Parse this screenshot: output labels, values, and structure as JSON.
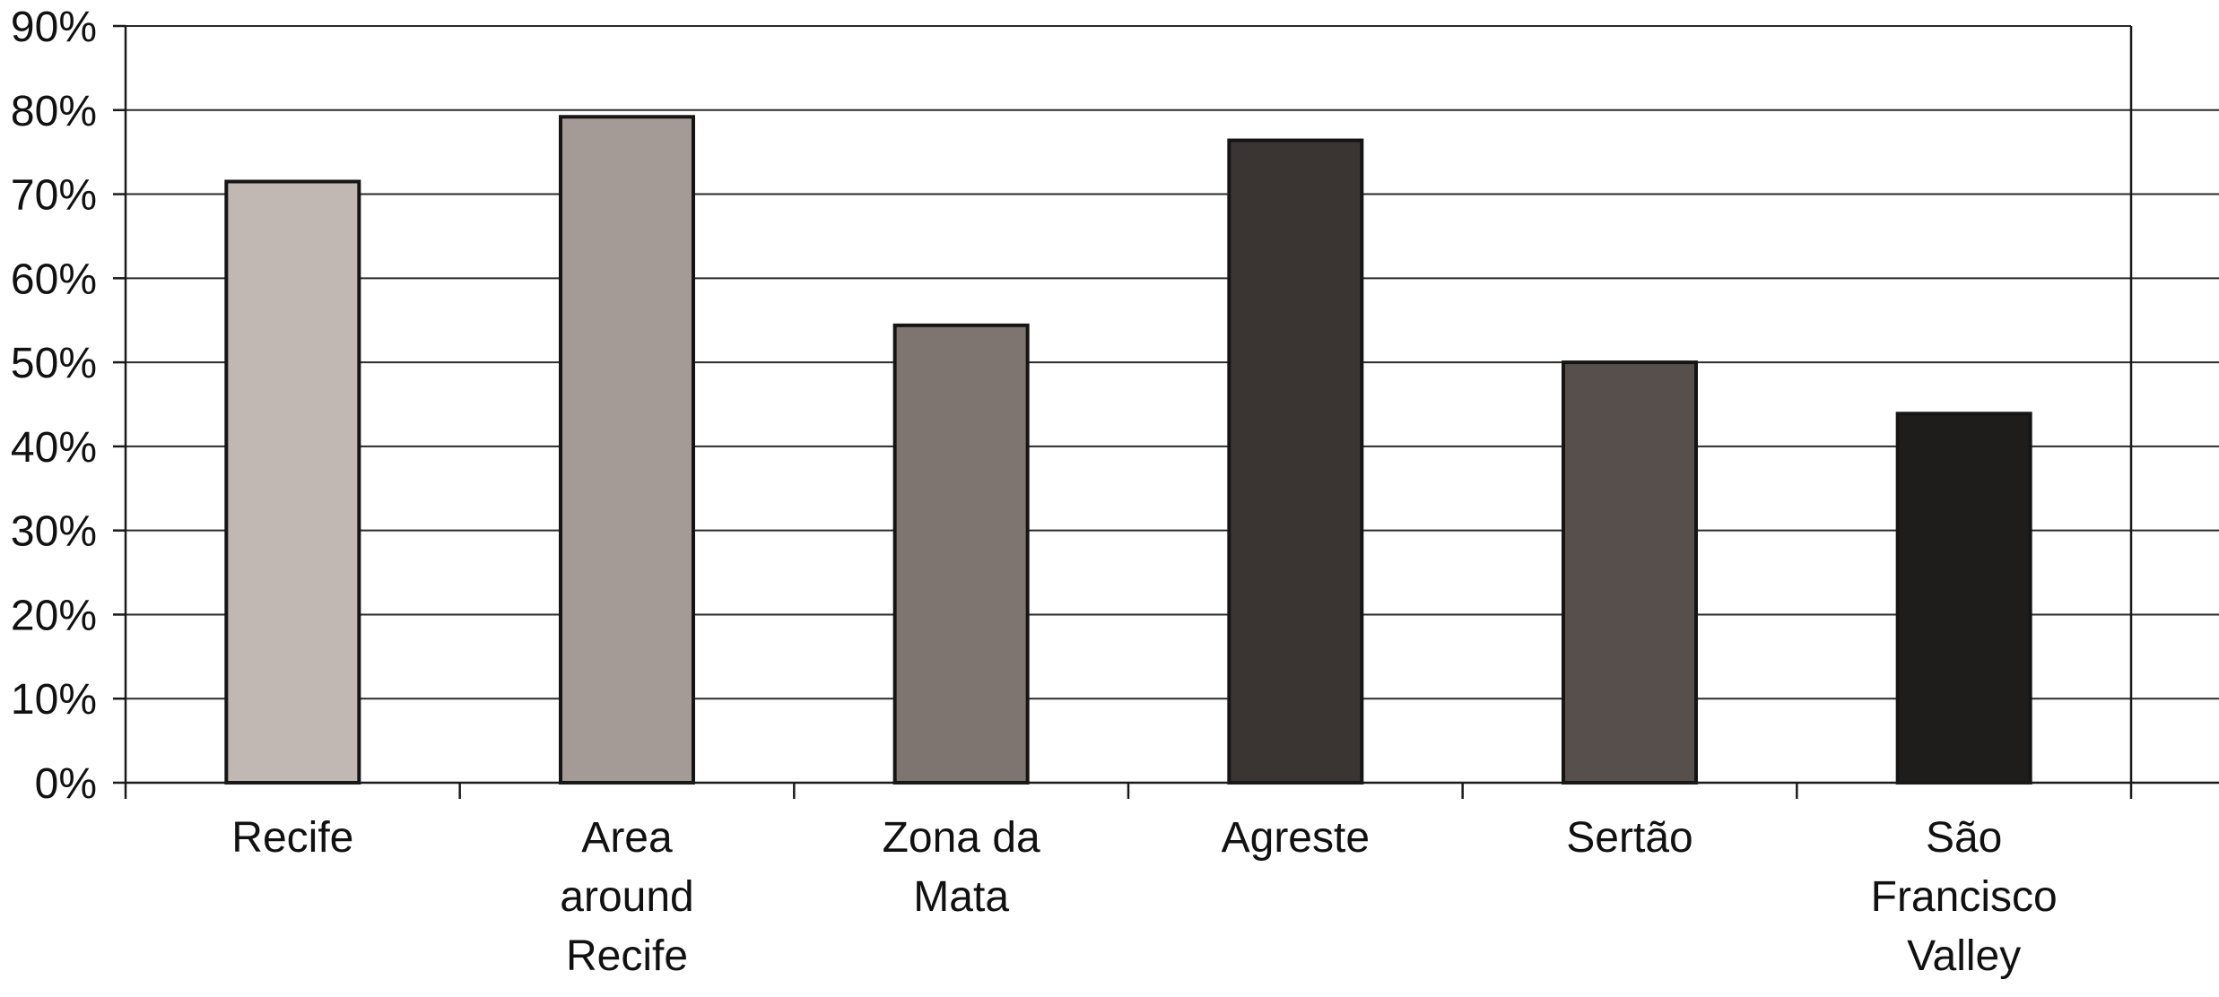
{
  "chart_data": {
    "type": "bar",
    "title": "",
    "xlabel": "",
    "ylabel": "",
    "categories": [
      [
        "Recife"
      ],
      [
        "Area",
        "around",
        "Recife"
      ],
      [
        "Zona da",
        "Mata"
      ],
      [
        "Agreste"
      ],
      [
        "Sertão"
      ],
      [
        "São",
        "Francisco",
        "Valley"
      ]
    ],
    "values": [
      71.5,
      79.2,
      54.4,
      76.4,
      50.0,
      43.9
    ],
    "bar_colors": [
      "#c2b8b3",
      "#a59b96",
      "#7e7470",
      "#3a3532",
      "#574f4b",
      "#1e1d1b"
    ],
    "ylim": [
      0,
      90
    ],
    "yticks": [
      0,
      10,
      20,
      30,
      40,
      50,
      60,
      70,
      80,
      90
    ],
    "ytick_labels": [
      "0%",
      "10%",
      "20%",
      "30%",
      "40%",
      "50%",
      "60%",
      "70%",
      "80%",
      "90%"
    ],
    "grid": true,
    "legend": "none"
  }
}
